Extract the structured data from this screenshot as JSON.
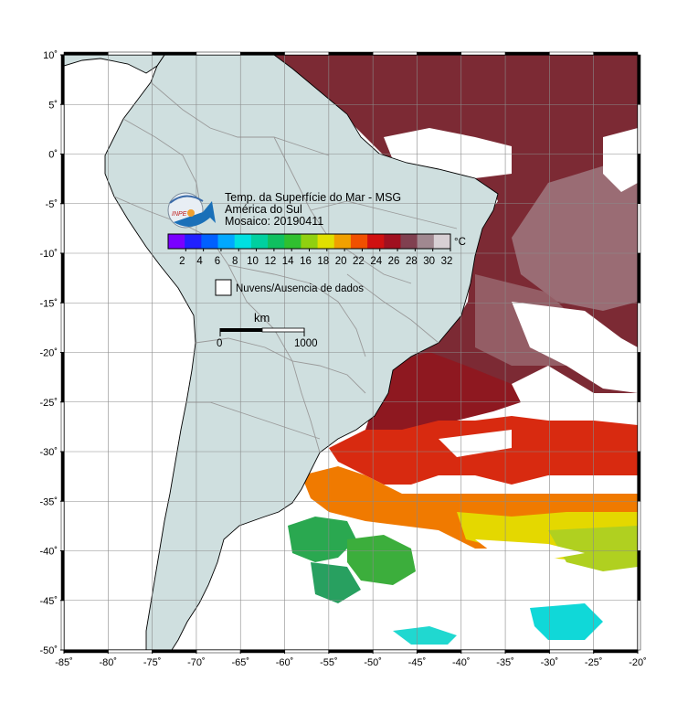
{
  "map": {
    "title": "Temp. da Superfície do Mar - MSG",
    "region": "América do Sul",
    "mosaic": "Mosaico: 20190411",
    "lon_range": [
      -85,
      -20
    ],
    "lat_range": [
      -50,
      10
    ],
    "lon_ticks": [
      "-85˚",
      "-80˚",
      "-75˚",
      "-70˚",
      "-65˚",
      "-60˚",
      "-55˚",
      "-50˚",
      "-45˚",
      "-40˚",
      "-35˚",
      "-30˚",
      "-25˚",
      "-20˚"
    ],
    "lat_ticks": [
      "10˚",
      "5˚",
      "0˚",
      "-5˚",
      "-10˚",
      "-15˚",
      "-20˚",
      "-25˚",
      "-30˚",
      "-35˚",
      "-40˚",
      "-45˚",
      "-50˚"
    ],
    "grid": true
  },
  "colorbar": {
    "unit": "°C",
    "labels": [
      "2",
      "4",
      "6",
      "8",
      "10",
      "12",
      "14",
      "16",
      "18",
      "20",
      "22",
      "24",
      "26",
      "28",
      "30",
      "32"
    ],
    "range": [
      0,
      32
    ],
    "colors": [
      "#7a00ff",
      "#2020ff",
      "#0060ff",
      "#00a8ff",
      "#00e0e0",
      "#00d0a0",
      "#10c060",
      "#30c030",
      "#90d010",
      "#e0e000",
      "#f0a000",
      "#f05000",
      "#d01010",
      "#a01020",
      "#804050",
      "#a08890",
      "#d8d0d4"
    ]
  },
  "legend": {
    "clouds_label": "Nuvens/Ausencia de dados"
  },
  "scalebar": {
    "unit": "km",
    "labels": [
      "0",
      "1000"
    ]
  },
  "logo": {
    "text": "INPE"
  },
  "colors": {
    "land": "#cfdfdf",
    "ocean_nodata": "#ffffff",
    "grid": "#888888",
    "border": "#999999"
  }
}
